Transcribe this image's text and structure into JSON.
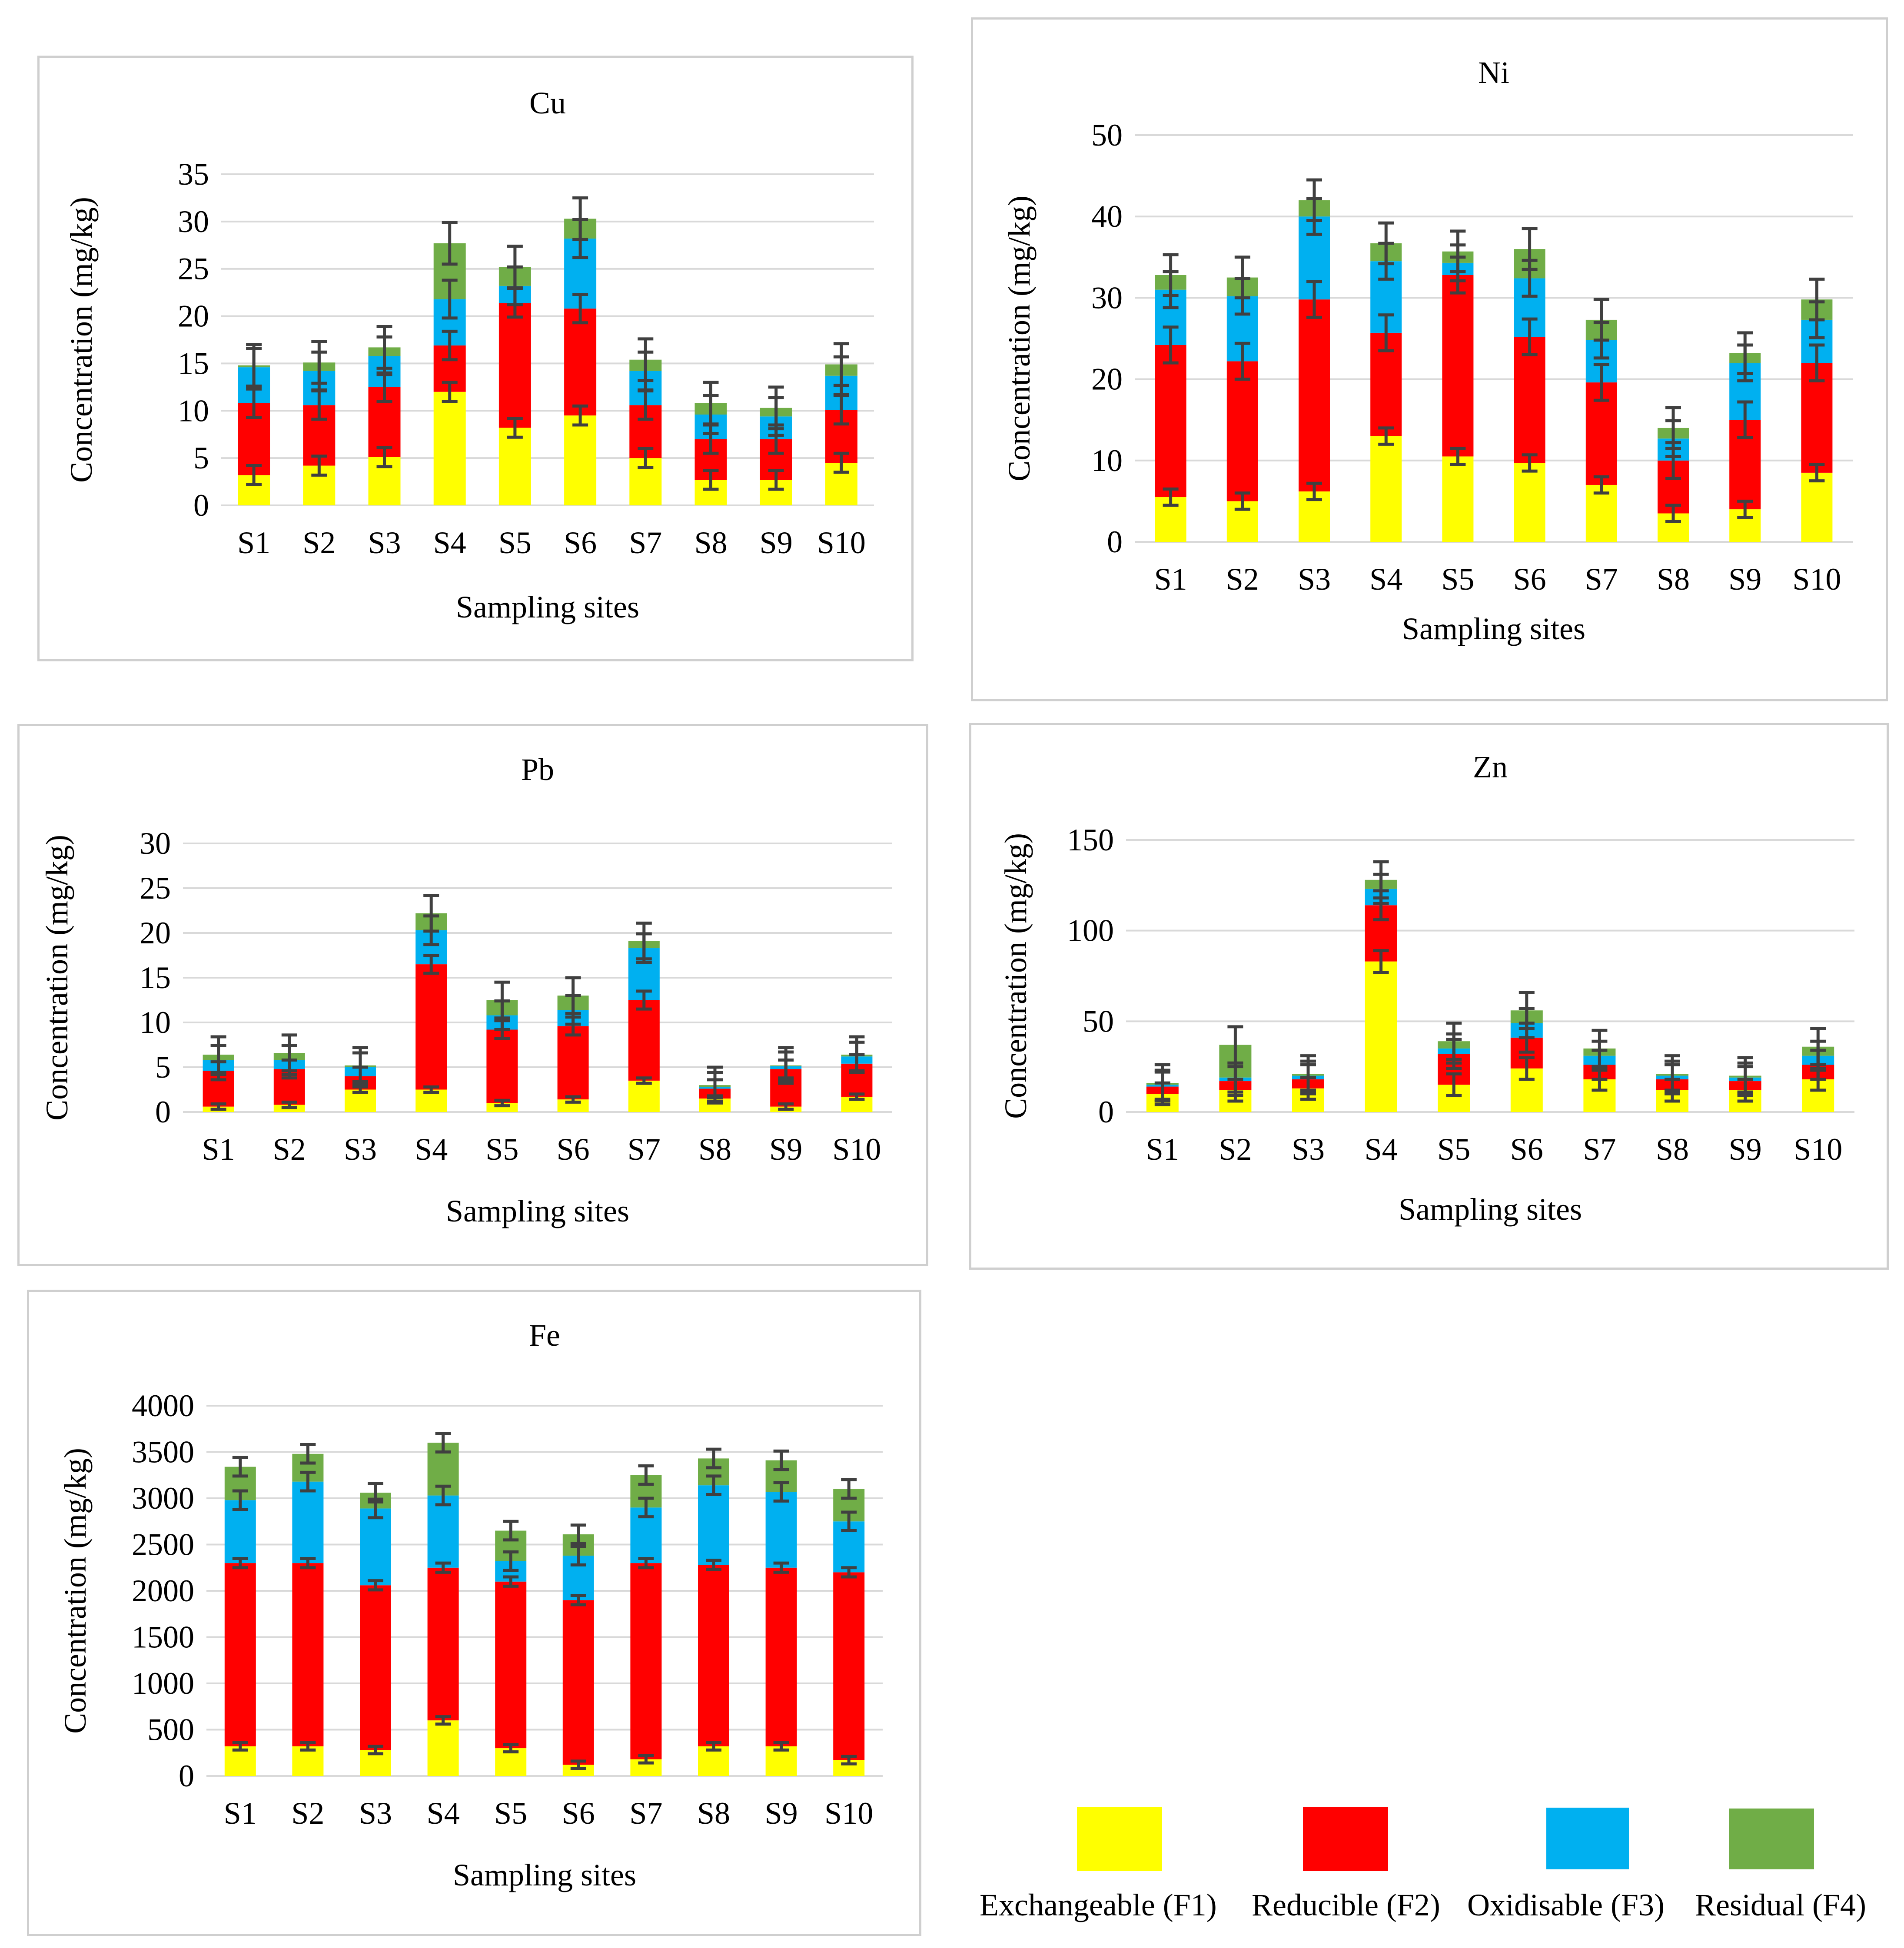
{
  "colors": {
    "F1": "#ffff00",
    "F2": "#ff0000",
    "F3": "#00b0f0",
    "F4": "#70ad47",
    "grid": "#d9d9d9",
    "error": "#404040"
  },
  "legend": {
    "items": [
      {
        "key": "F1",
        "label": "Exchangeable (F1)",
        "color": "#ffff00"
      },
      {
        "key": "F2",
        "label": "Reducible (F2)",
        "color": "#ff0000"
      },
      {
        "key": "F3",
        "label": "Oxidisable (F3)",
        "color": "#00b0f0"
      },
      {
        "key": "F4",
        "label": "Residual (F4)",
        "color": "#70ad47"
      }
    ]
  },
  "chart_data": [
    {
      "id": "cu",
      "type": "bar",
      "stacked": true,
      "title": "Cu",
      "xlabel": "Sampling sites",
      "ylabel": "Concentration (mg/kg)",
      "ylim": [
        0,
        35
      ],
      "yticks": [
        0,
        5,
        10,
        15,
        20,
        25,
        30,
        35
      ],
      "categories": [
        "S1",
        "S2",
        "S3",
        "S4",
        "S5",
        "S6",
        "S7",
        "S8",
        "S9",
        "S10"
      ],
      "series": [
        {
          "name": "Exchangeable (F1)",
          "values": [
            3.2,
            4.2,
            5.1,
            12.0,
            8.2,
            9.5,
            5.0,
            2.7,
            2.7,
            4.5
          ]
        },
        {
          "name": "Reducible (F2)",
          "values": [
            7.6,
            6.4,
            7.4,
            4.9,
            13.2,
            11.3,
            5.6,
            4.3,
            4.3,
            5.6
          ]
        },
        {
          "name": "Oxidisable (F3)",
          "values": [
            3.8,
            3.6,
            3.3,
            4.9,
            1.8,
            7.4,
            3.6,
            2.6,
            2.4,
            3.6
          ]
        },
        {
          "name": "Residual (F4)",
          "values": [
            0.2,
            0.9,
            0.9,
            5.9,
            2.0,
            2.1,
            1.2,
            1.2,
            0.9,
            1.2
          ]
        }
      ],
      "errors": [
        [
          1.0,
          1.0,
          1.0,
          1.0,
          1.0,
          1.0,
          1.0,
          1.0,
          1.0,
          1.0
        ],
        [
          1.5,
          1.5,
          1.5,
          1.5,
          1.5,
          1.5,
          1.5,
          1.5,
          1.5,
          1.5
        ],
        [
          2.0,
          2.0,
          2.0,
          2.0,
          2.0,
          2.0,
          2.0,
          2.0,
          2.0,
          2.0
        ],
        [
          2.2,
          2.2,
          2.2,
          2.2,
          2.2,
          2.2,
          2.2,
          2.2,
          2.2,
          2.2
        ]
      ]
    },
    {
      "id": "ni",
      "type": "bar",
      "stacked": true,
      "title": "Ni",
      "xlabel": "Sampling sites",
      "ylabel": "Concentration (mg/kg)",
      "ylim": [
        0,
        50
      ],
      "yticks": [
        0,
        10,
        20,
        30,
        40,
        50
      ],
      "categories": [
        "S1",
        "S2",
        "S3",
        "S4",
        "S5",
        "S6",
        "S7",
        "S8",
        "S9",
        "S10"
      ],
      "series": [
        {
          "name": "Exchangeable (F1)",
          "values": [
            5.5,
            5.0,
            6.2,
            13.0,
            10.5,
            9.7,
            7.0,
            3.5,
            4.0,
            8.5
          ]
        },
        {
          "name": "Reducible (F2)",
          "values": [
            18.7,
            17.2,
            23.6,
            12.7,
            22.3,
            15.5,
            12.6,
            6.5,
            11.0,
            13.5
          ]
        },
        {
          "name": "Oxidisable (F3)",
          "values": [
            6.8,
            8.0,
            10.2,
            8.8,
            1.5,
            7.2,
            5.2,
            2.7,
            7.0,
            5.3
          ]
        },
        {
          "name": "Residual (F4)",
          "values": [
            1.8,
            2.3,
            2.0,
            2.2,
            1.4,
            3.6,
            2.5,
            1.3,
            1.2,
            2.5
          ]
        }
      ],
      "errors": [
        [
          1.0,
          1.0,
          1.0,
          1.0,
          1.0,
          1.0,
          1.0,
          1.0,
          1.0,
          1.0
        ],
        [
          2.2,
          2.2,
          2.2,
          2.2,
          2.2,
          2.2,
          2.2,
          2.2,
          2.2,
          2.2
        ],
        [
          2.2,
          2.2,
          2.2,
          2.2,
          2.2,
          2.2,
          2.2,
          2.2,
          2.2,
          2.2
        ],
        [
          2.5,
          2.5,
          2.5,
          2.5,
          2.5,
          2.5,
          2.5,
          2.5,
          2.5,
          2.5
        ]
      ]
    },
    {
      "id": "pb",
      "type": "bar",
      "stacked": true,
      "title": "Pb",
      "xlabel": "Sampling sites",
      "ylabel": "Concentration (mg/kg)",
      "ylim": [
        0,
        30
      ],
      "yticks": [
        0,
        5,
        10,
        15,
        20,
        25,
        30
      ],
      "categories": [
        "S1",
        "S2",
        "S3",
        "S4",
        "S5",
        "S6",
        "S7",
        "S8",
        "S9",
        "S10"
      ],
      "series": [
        {
          "name": "Exchangeable (F1)",
          "values": [
            0.6,
            0.8,
            2.5,
            2.5,
            1.0,
            1.4,
            3.5,
            1.5,
            0.6,
            1.7
          ]
        },
        {
          "name": "Reducible (F2)",
          "values": [
            4.0,
            4.0,
            1.5,
            14.0,
            8.2,
            8.2,
            9.0,
            1.1,
            4.2,
            3.7
          ]
        },
        {
          "name": "Oxidisable (F3)",
          "values": [
            1.2,
            1.0,
            1.0,
            3.8,
            1.6,
            1.8,
            5.8,
            0.2,
            0.3,
            0.8
          ]
        },
        {
          "name": "Residual (F4)",
          "values": [
            0.6,
            0.8,
            0.2,
            1.9,
            1.7,
            1.6,
            0.8,
            0.2,
            0.1,
            0.2
          ]
        }
      ],
      "errors": [
        [
          0.3,
          0.3,
          0.3,
          0.3,
          0.3,
          0.3,
          0.3,
          0.3,
          0.3,
          0.3
        ],
        [
          1.0,
          1.0,
          1.0,
          1.0,
          1.0,
          1.0,
          1.0,
          1.0,
          1.0,
          1.0
        ],
        [
          1.6,
          1.6,
          1.6,
          1.6,
          1.6,
          1.6,
          1.6,
          1.6,
          1.6,
          1.6
        ],
        [
          2.0,
          2.0,
          2.0,
          2.0,
          2.0,
          2.0,
          2.0,
          2.0,
          2.0,
          2.0
        ]
      ]
    },
    {
      "id": "zn",
      "type": "bar",
      "stacked": true,
      "title": "Zn",
      "xlabel": "Sampling sites",
      "ylabel": "Concentration (mg/kg)",
      "ylim": [
        0,
        150
      ],
      "yticks": [
        0,
        50,
        100,
        150
      ],
      "categories": [
        "S1",
        "S2",
        "S3",
        "S4",
        "S5",
        "S6",
        "S7",
        "S8",
        "S9",
        "S10"
      ],
      "series": [
        {
          "name": "Exchangeable (F1)",
          "values": [
            10,
            12,
            13,
            83,
            15,
            24,
            18,
            12,
            12,
            18
          ]
        },
        {
          "name": "Reducible (F2)",
          "values": [
            4,
            5,
            5,
            31,
            17,
            17,
            8,
            6,
            5,
            8
          ]
        },
        {
          "name": "Oxidisable (F3)",
          "values": [
            1,
            2,
            2,
            9,
            3,
            8,
            5,
            2,
            2,
            5
          ]
        },
        {
          "name": "Residual (F4)",
          "values": [
            1,
            18,
            1,
            5,
            4,
            7,
            4,
            1,
            1,
            5
          ]
        }
      ],
      "errors": [
        [
          6,
          6,
          6,
          6,
          6,
          6,
          6,
          6,
          6,
          6
        ],
        [
          8,
          8,
          8,
          8,
          8,
          8,
          8,
          8,
          8,
          8
        ],
        [
          8,
          8,
          8,
          8,
          8,
          8,
          8,
          8,
          8,
          8
        ],
        [
          10,
          10,
          10,
          10,
          10,
          10,
          10,
          10,
          10,
          10
        ]
      ]
    },
    {
      "id": "fe",
      "type": "bar",
      "stacked": true,
      "title": "Fe",
      "xlabel": "Sampling sites",
      "ylabel": "Concentration (mg/kg)",
      "ylim": [
        0,
        4000
      ],
      "yticks": [
        0,
        500,
        1000,
        1500,
        2000,
        2500,
        3000,
        3500,
        4000
      ],
      "categories": [
        "S1",
        "S2",
        "S3",
        "S4",
        "S5",
        "S6",
        "S7",
        "S8",
        "S9",
        "S10"
      ],
      "series": [
        {
          "name": "Exchangeable (F1)",
          "values": [
            320,
            320,
            280,
            600,
            300,
            120,
            180,
            320,
            320,
            170
          ]
        },
        {
          "name": "Reducible (F2)",
          "values": [
            1980,
            1980,
            1780,
            1650,
            1800,
            1780,
            2120,
            1960,
            1930,
            2030
          ]
        },
        {
          "name": "Oxidisable (F3)",
          "values": [
            680,
            880,
            830,
            780,
            220,
            480,
            600,
            860,
            820,
            550
          ]
        },
        {
          "name": "Residual (F4)",
          "values": [
            360,
            300,
            170,
            570,
            330,
            230,
            350,
            290,
            340,
            350
          ]
        }
      ],
      "errors": [
        [
          40,
          40,
          40,
          40,
          40,
          40,
          40,
          40,
          40,
          40
        ],
        [
          50,
          50,
          50,
          50,
          50,
          50,
          50,
          50,
          50,
          50
        ],
        [
          100,
          100,
          100,
          100,
          100,
          100,
          100,
          100,
          100,
          100
        ],
        [
          100,
          100,
          100,
          100,
          100,
          100,
          100,
          100,
          100,
          100
        ]
      ]
    }
  ]
}
